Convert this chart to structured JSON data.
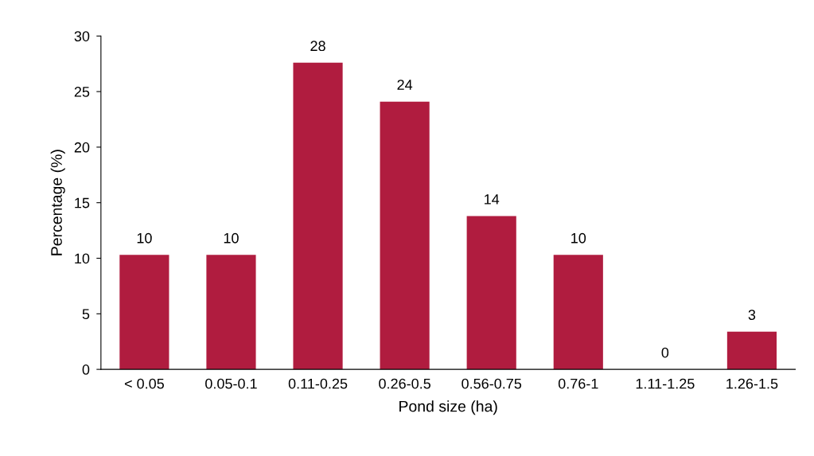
{
  "chart_data": {
    "type": "bar",
    "xlabel": "Pond size (ha)",
    "ylabel": "Percentage (%)",
    "categories": [
      "< 0.05",
      "0.05-0.1",
      "0.11-0.25",
      "0.26-0.5",
      "0.56-0.75",
      "0.76-1",
      "1.11-1.25",
      "1.26-1.5"
    ],
    "values": [
      10.3,
      10.3,
      27.6,
      24.1,
      13.8,
      10.3,
      0,
      3.4
    ],
    "value_labels": [
      "10",
      "10",
      "28",
      "24",
      "14",
      "10",
      "0",
      "3"
    ],
    "color": "#b01c3f",
    "ylim": [
      0,
      30
    ],
    "yticks": [
      0,
      5,
      10,
      15,
      20,
      25,
      30
    ],
    "grid": false
  }
}
